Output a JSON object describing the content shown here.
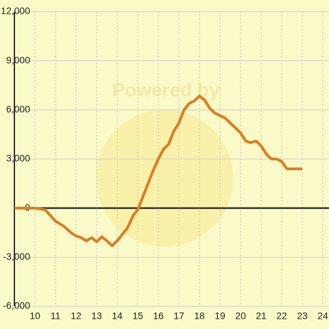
{
  "chart_data": {
    "type": "line",
    "watermark": "Powered by",
    "x": [
      9,
      10,
      10.5,
      11,
      11.4,
      11.75,
      12,
      12.25,
      12.5,
      12.75,
      13,
      13.25,
      13.5,
      13.75,
      14,
      14.5,
      14.8,
      15,
      15.25,
      15.5,
      15.75,
      16,
      16.25,
      16.5,
      16.75,
      17,
      17.25,
      17.5,
      17.75,
      18,
      18.25,
      18.5,
      18.75,
      19,
      19.25,
      19.5,
      19.75,
      20,
      20.25,
      20.5,
      20.75,
      21,
      21.25,
      21.5,
      21.75,
      22,
      22.25,
      22.5,
      22.75,
      23
    ],
    "series": [
      {
        "name": "value",
        "color": "#e07b20",
        "values": [
          0,
          0,
          -100,
          -800,
          -1100,
          -1500,
          -1700,
          -1800,
          -2000,
          -1800,
          -2050,
          -1750,
          -2000,
          -2300,
          -2000,
          -1200,
          -400,
          -100,
          700,
          1500,
          2300,
          3000,
          3600,
          3900,
          4700,
          5200,
          6000,
          6400,
          6550,
          6850,
          6600,
          6100,
          5800,
          5650,
          5500,
          5200,
          4900,
          4600,
          4100,
          4000,
          4100,
          3800,
          3300,
          3000,
          3000,
          2850,
          2400,
          2400,
          2400,
          2400
        ]
      }
    ],
    "xlim": [
      9,
      24.3
    ],
    "xticks": [
      10,
      11,
      12,
      13,
      14,
      15,
      16,
      17,
      18,
      19,
      20,
      21,
      22,
      23,
      24
    ],
    "ylim": [
      -6000,
      12000
    ],
    "yticks": [
      {
        "value": -6000,
        "label": "-6,000"
      },
      {
        "value": -3000,
        "label": "-3,000"
      },
      0,
      {
        "value": 3000,
        "label": "3,000"
      },
      {
        "value": 6000,
        "label": "6,000"
      },
      {
        "value": 9000,
        "label": "9,000"
      },
      {
        "value": 12000,
        "label": "12,000"
      }
    ],
    "grid": true
  }
}
